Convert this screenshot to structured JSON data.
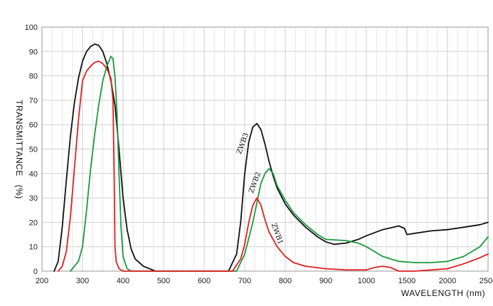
{
  "chart_data": {
    "type": "line",
    "title": "",
    "xlabel": "WAVELENGTH (nm)",
    "ylabel": "TRANSMITTANCE (%)",
    "ylabel_parts": [
      "TRANSMITTANCE",
      "(%)"
    ],
    "ylim": [
      0,
      100
    ],
    "y_ticks": [
      0,
      10,
      20,
      30,
      40,
      50,
      60,
      70,
      80,
      90,
      100
    ],
    "x_ticks": [
      200,
      300,
      400,
      500,
      600,
      700,
      800,
      900,
      1000,
      1500,
      2000,
      2500
    ],
    "x_tick_labels": [
      "200",
      "300",
      "400",
      "500",
      "600",
      "700",
      "800",
      "900",
      "1000",
      "1500",
      "2000",
      "2500"
    ],
    "x_scale_note": "piecewise axis: 200-1000 nm linear at 100 nm steps, then 1000-2500 nm at 500 nm steps",
    "grid": true,
    "colors": {
      "ZWB3": "#111111",
      "ZWB2": "#1a9a3c",
      "ZWB1": "#e02020",
      "grid": "#cfcfcf"
    },
    "series": [
      {
        "name": "ZWB3",
        "label": "ZWB3",
        "color": "#111111",
        "points": [
          [
            230,
            0
          ],
          [
            240,
            4
          ],
          [
            250,
            18
          ],
          [
            260,
            37
          ],
          [
            270,
            55
          ],
          [
            280,
            69
          ],
          [
            290,
            79
          ],
          [
            300,
            86
          ],
          [
            310,
            90
          ],
          [
            320,
            92
          ],
          [
            330,
            93
          ],
          [
            340,
            92.5
          ],
          [
            350,
            90
          ],
          [
            360,
            85
          ],
          [
            370,
            78
          ],
          [
            380,
            68
          ],
          [
            390,
            50
          ],
          [
            400,
            30
          ],
          [
            410,
            17
          ],
          [
            420,
            9
          ],
          [
            430,
            5
          ],
          [
            450,
            2
          ],
          [
            480,
            0
          ],
          [
            660,
            0
          ],
          [
            680,
            7
          ],
          [
            690,
            20
          ],
          [
            700,
            40
          ],
          [
            710,
            53
          ],
          [
            720,
            59
          ],
          [
            730,
            60.5
          ],
          [
            740,
            58
          ],
          [
            750,
            52
          ],
          [
            760,
            45
          ],
          [
            770,
            39
          ],
          [
            780,
            34
          ],
          [
            800,
            27.5
          ],
          [
            820,
            23
          ],
          [
            850,
            18
          ],
          [
            880,
            14
          ],
          [
            900,
            12
          ],
          [
            920,
            11
          ],
          [
            950,
            11.5
          ],
          [
            980,
            13
          ],
          [
            1000,
            14.5
          ],
          [
            1200,
            17
          ],
          [
            1400,
            18.5
          ],
          [
            1470,
            17.5
          ],
          [
            1500,
            15
          ],
          [
            1600,
            15.5
          ],
          [
            1800,
            16.5
          ],
          [
            2000,
            17
          ],
          [
            2200,
            18
          ],
          [
            2400,
            19
          ],
          [
            2500,
            20
          ]
        ]
      },
      {
        "name": "ZWB2",
        "label": "ZWB2",
        "color": "#1a9a3c",
        "points": [
          [
            270,
            0
          ],
          [
            280,
            2
          ],
          [
            290,
            4
          ],
          [
            300,
            10
          ],
          [
            310,
            25
          ],
          [
            320,
            42
          ],
          [
            330,
            56
          ],
          [
            340,
            68
          ],
          [
            350,
            78
          ],
          [
            360,
            84
          ],
          [
            370,
            88
          ],
          [
            375,
            87
          ],
          [
            380,
            80
          ],
          [
            385,
            65
          ],
          [
            390,
            40
          ],
          [
            395,
            18
          ],
          [
            400,
            6
          ],
          [
            410,
            1
          ],
          [
            420,
            0
          ],
          [
            680,
            0
          ],
          [
            700,
            7
          ],
          [
            720,
            20
          ],
          [
            730,
            28
          ],
          [
            740,
            36
          ],
          [
            750,
            40
          ],
          [
            760,
            42
          ],
          [
            770,
            40
          ],
          [
            780,
            35
          ],
          [
            800,
            29
          ],
          [
            820,
            24
          ],
          [
            850,
            19
          ],
          [
            880,
            15
          ],
          [
            900,
            13
          ],
          [
            950,
            12.5
          ],
          [
            980,
            11.5
          ],
          [
            1000,
            10
          ],
          [
            1200,
            6
          ],
          [
            1400,
            4
          ],
          [
            1600,
            3.5
          ],
          [
            1800,
            3.5
          ],
          [
            2000,
            4
          ],
          [
            2200,
            6
          ],
          [
            2400,
            10
          ],
          [
            2500,
            14
          ]
        ]
      },
      {
        "name": "ZWB1",
        "label": "ZWB1",
        "color": "#e02020",
        "points": [
          [
            240,
            0
          ],
          [
            250,
            2
          ],
          [
            260,
            8
          ],
          [
            270,
            22
          ],
          [
            280,
            42
          ],
          [
            290,
            62
          ],
          [
            300,
            78
          ],
          [
            310,
            82
          ],
          [
            320,
            84
          ],
          [
            330,
            85.5
          ],
          [
            340,
            86
          ],
          [
            350,
            85
          ],
          [
            360,
            83
          ],
          [
            370,
            79
          ],
          [
            375,
            70
          ],
          [
            378,
            40
          ],
          [
            380,
            10
          ],
          [
            383,
            4
          ],
          [
            390,
            1
          ],
          [
            400,
            0
          ],
          [
            670,
            0
          ],
          [
            690,
            5
          ],
          [
            700,
            11
          ],
          [
            710,
            20
          ],
          [
            720,
            27
          ],
          [
            730,
            30
          ],
          [
            740,
            27
          ],
          [
            750,
            21
          ],
          [
            760,
            16
          ],
          [
            780,
            10
          ],
          [
            800,
            6
          ],
          [
            820,
            3.5
          ],
          [
            850,
            2
          ],
          [
            900,
            1
          ],
          [
            950,
            0.5
          ],
          [
            1000,
            0.5
          ],
          [
            1100,
            1.5
          ],
          [
            1200,
            2
          ],
          [
            1300,
            1.5
          ],
          [
            1400,
            0
          ],
          [
            1600,
            0
          ],
          [
            1800,
            0.5
          ],
          [
            2000,
            1
          ],
          [
            2200,
            3
          ],
          [
            2400,
            5.5
          ],
          [
            2500,
            7
          ]
        ]
      }
    ]
  }
}
